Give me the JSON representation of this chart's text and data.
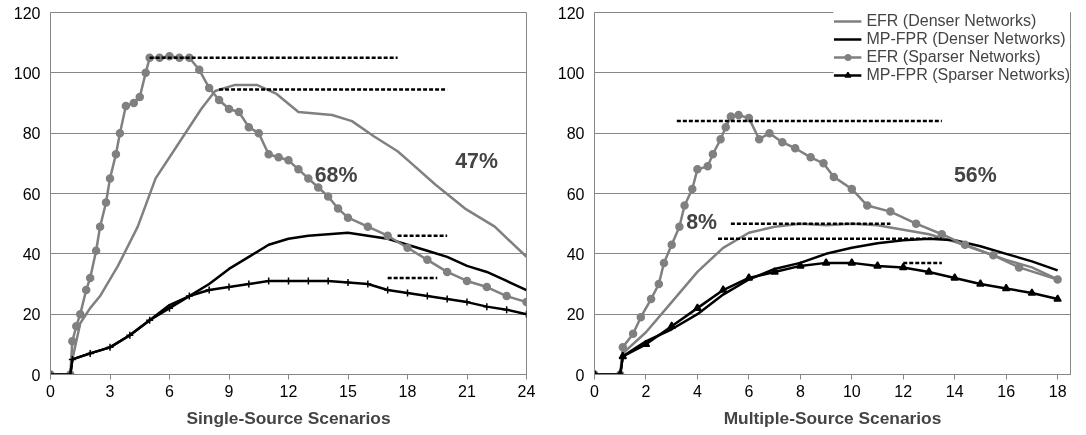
{
  "chart_data": [
    {
      "type": "line",
      "xlabel": "Single-Source Scenarios",
      "xlim": [
        0,
        24
      ],
      "xticks": [
        0,
        3,
        6,
        9,
        12,
        15,
        18,
        21,
        24
      ],
      "ylim": [
        0,
        120
      ],
      "yticks": [
        0,
        20,
        40,
        60,
        80,
        100,
        120
      ],
      "grid": "y",
      "legend": false,
      "annotations": [
        "68%",
        "47%"
      ],
      "series": [
        {
          "color": "#808080",
          "marker": "none",
          "x": [
            0,
            1,
            1.1,
            1.5,
            2,
            2.5,
            3.4,
            4.4,
            5.3,
            6.3,
            7.6,
            8.3,
            9.3,
            10.4,
            11.4,
            12.5,
            14.2,
            15.2,
            16.3,
            17.5,
            18.2,
            19.4,
            20.9,
            22.4,
            24
          ],
          "values": [
            0,
            0,
            5,
            17,
            22,
            26,
            36,
            49,
            65,
            75,
            88,
            94,
            96,
            96,
            93,
            87,
            86,
            84,
            79,
            74,
            70,
            63,
            55,
            49,
            39
          ]
        },
        {
          "color": "#000000",
          "marker": "none",
          "x": [
            0,
            1,
            1.1,
            2,
            3,
            4,
            5,
            6,
            7,
            8,
            9,
            10,
            11,
            12,
            13,
            14,
            15,
            16,
            17,
            18,
            19,
            20,
            21,
            22,
            23,
            24
          ],
          "values": [
            0,
            0,
            5,
            7,
            9,
            13,
            18,
            23,
            26,
            30,
            35,
            39,
            43,
            45,
            46,
            46.5,
            47,
            46,
            45,
            43,
            41,
            39,
            36,
            34,
            31,
            28
          ]
        },
        {
          "color": "#808080",
          "marker": "circle",
          "x": [
            0,
            1,
            1.1,
            1.3,
            1.5,
            1.8,
            2,
            2.3,
            2.5,
            2.8,
            3,
            3.3,
            3.5,
            3.8,
            4.2,
            4.5,
            4.8,
            5,
            5.5,
            6,
            6.5,
            7,
            7.5,
            8,
            8.5,
            9,
            9.5,
            10,
            10.5,
            11,
            11.5,
            12,
            12.5,
            13,
            13.5,
            14,
            14.5,
            15,
            16,
            17,
            18,
            19,
            20,
            21,
            22,
            23,
            24
          ],
          "values": [
            0,
            0,
            11,
            16,
            20,
            28,
            32,
            41,
            49,
            57,
            65,
            73,
            80,
            89,
            90,
            92,
            100,
            105,
            105,
            105.5,
            105,
            105,
            101,
            95,
            91,
            88,
            87,
            82,
            80,
            73,
            72,
            71,
            68,
            65,
            62,
            59,
            55,
            52,
            49,
            46,
            42,
            38,
            34,
            31,
            29,
            26,
            24
          ]
        },
        {
          "color": "#000000",
          "marker": "cross",
          "x": [
            0,
            1,
            1.1,
            2,
            3,
            4,
            5,
            6,
            7,
            8,
            9,
            10,
            11,
            12,
            13,
            14,
            15,
            16,
            17,
            18,
            19,
            20,
            21,
            22,
            23,
            24
          ],
          "values": [
            0,
            0,
            5,
            7,
            9,
            13,
            18,
            22,
            26,
            28,
            29,
            30,
            31,
            31,
            31,
            31,
            30.5,
            30,
            28,
            27,
            26,
            25,
            24,
            22.5,
            21.5,
            20
          ]
        },
        {
          "color": "#000000",
          "marker": "none",
          "line_style": "dashed",
          "x": [
            5,
            17.5
          ],
          "values": [
            105,
            105
          ]
        },
        {
          "color": "#000000",
          "marker": "none",
          "line_style": "dashed",
          "x": [
            8.5,
            20
          ],
          "values": [
            94.5,
            94.5
          ]
        },
        {
          "color": "#000000",
          "marker": "none",
          "line_style": "dashed",
          "x": [
            17.5,
            20
          ],
          "values": [
            46,
            46
          ]
        },
        {
          "color": "#000000",
          "marker": "none",
          "line_style": "dashed",
          "x": [
            17,
            19.5
          ],
          "values": [
            32,
            32
          ]
        }
      ]
    },
    {
      "type": "line",
      "xlabel": "Multiple-Source Scenarios",
      "xlim": [
        0,
        18.5
      ],
      "xticks": [
        0,
        2,
        4,
        6,
        8,
        10,
        12,
        14,
        16,
        18
      ],
      "ylim": [
        0,
        120
      ],
      "yticks": [
        0,
        20,
        40,
        60,
        80,
        100,
        120
      ],
      "grid": "y",
      "legend": "top right",
      "annotations": [
        "56%",
        "8%"
      ],
      "series": [
        {
          "name": "EFR (Denser Networks)",
          "color": "#808080",
          "marker": "none",
          "x": [
            0,
            1,
            1.1,
            2,
            3,
            4,
            5,
            6,
            7,
            8,
            9,
            10,
            11,
            12,
            13,
            14,
            15,
            16,
            17,
            18
          ],
          "values": [
            0,
            0,
            7,
            14,
            24,
            34,
            42,
            47,
            49,
            50,
            49.5,
            50,
            49.5,
            48,
            46.5,
            44,
            41,
            38,
            35.5,
            31.5
          ]
        },
        {
          "name": "MP-FPR (Denser Networks)",
          "color": "#000000",
          "marker": "none",
          "x": [
            0,
            1,
            1.1,
            2,
            3,
            4,
            5,
            6,
            7,
            8,
            9,
            10,
            11,
            12,
            13,
            14,
            15,
            16,
            17,
            18
          ],
          "values": [
            0,
            0,
            6,
            11,
            15,
            20,
            26.5,
            31.5,
            35,
            37,
            40,
            42,
            43.5,
            44.5,
            45,
            44.5,
            42.5,
            40,
            37.5,
            34.5
          ]
        },
        {
          "name": "EFR (Sparser Networks)",
          "color": "#808080",
          "marker": "circle",
          "x": [
            0,
            1,
            1.1,
            1.5,
            1.8,
            2.2,
            2.5,
            2.7,
            3,
            3.3,
            3.5,
            3.8,
            4,
            4.4,
            4.6,
            4.9,
            5.1,
            5.3,
            5.6,
            6,
            6.4,
            6.8,
            7.3,
            7.8,
            8.4,
            8.9,
            9.3,
            10,
            10.6,
            11.5,
            12.5,
            13.5,
            14.4,
            15.5,
            16.5,
            18
          ],
          "values": [
            0,
            0,
            9,
            13.5,
            19,
            25,
            30,
            37,
            43,
            49,
            56,
            61.5,
            68,
            69,
            73,
            78,
            82,
            85.5,
            86,
            85,
            78,
            80,
            77,
            75,
            72,
            70,
            65.5,
            61.5,
            56,
            54,
            50,
            46.5,
            43,
            39.5,
            35.5,
            31.5
          ]
        },
        {
          "name": "MP-FPR (Sparser Networks)",
          "color": "#000000",
          "marker": "triangle",
          "x": [
            0,
            1,
            1.1,
            2,
            3,
            4,
            5,
            6,
            7,
            8,
            9,
            10,
            11,
            12,
            13,
            14,
            15,
            16,
            17,
            18
          ],
          "values": [
            0,
            0,
            6,
            10,
            16,
            22,
            28,
            32,
            34,
            36,
            37,
            37,
            36,
            35.5,
            34,
            32,
            30,
            28.5,
            27,
            25
          ]
        },
        {
          "color": "#000000",
          "marker": "none",
          "line_style": "dashed",
          "x": [
            3.2,
            13.5
          ],
          "values": [
            84,
            84
          ]
        },
        {
          "color": "#000000",
          "marker": "none",
          "line_style": "dashed",
          "x": [
            5.3,
            11.5
          ],
          "values": [
            50,
            50
          ]
        },
        {
          "color": "#000000",
          "marker": "none",
          "line_style": "dashed",
          "x": [
            4.8,
            13.5
          ],
          "values": [
            45,
            45
          ]
        },
        {
          "color": "#000000",
          "marker": "none",
          "line_style": "dashed",
          "x": [
            12,
            13.5
          ],
          "values": [
            37,
            37
          ]
        }
      ]
    }
  ]
}
